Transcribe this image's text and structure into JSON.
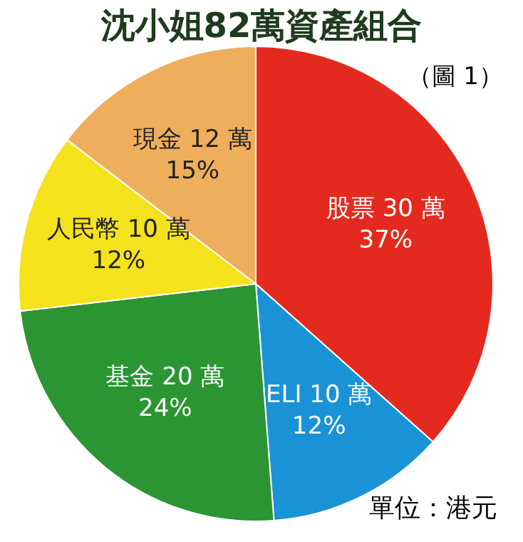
{
  "chart_data": {
    "type": "pie",
    "title": "沈小姐82萬資產組合",
    "categories": [
      "股票",
      "ELI",
      "基金",
      "人民幣",
      "現金"
    ],
    "values": [
      30,
      10,
      20,
      10,
      12
    ],
    "value_labels": [
      "30 萬\n37%",
      "10 萬\n12%",
      "20 萬\n24%",
      "10 萬\n12%",
      "12 萬\n15%"
    ],
    "colors": [
      "#e42a1e",
      "#1a92d6",
      "#2b9433",
      "#f4e21c",
      "#eeae5c"
    ],
    "legend": false,
    "annotations": [
      "（圖 1）",
      "單位：港元"
    ]
  }
}
